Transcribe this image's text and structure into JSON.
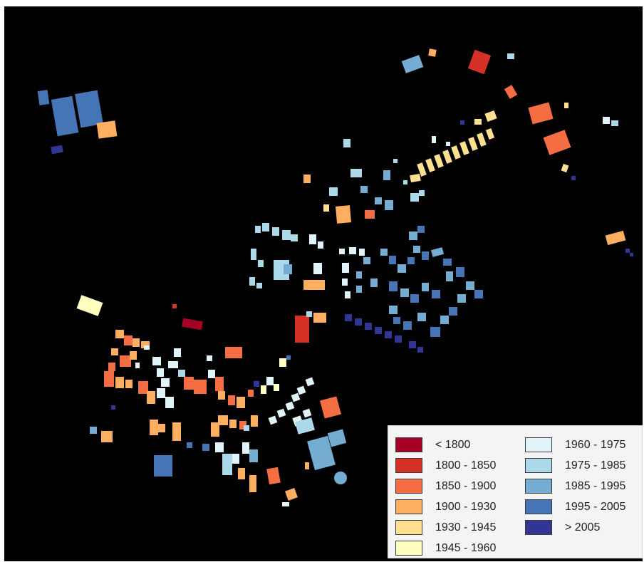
{
  "legend": {
    "items": [
      {
        "label": "< 1800",
        "color": "#a50026"
      },
      {
        "label": "1800 - 1850",
        "color": "#d73027"
      },
      {
        "label": "1850 - 1900",
        "color": "#f46d43"
      },
      {
        "label": "1900 - 1930",
        "color": "#fdae61"
      },
      {
        "label": "1930 - 1945",
        "color": "#fee090"
      },
      {
        "label": "1945 - 1960",
        "color": "#ffffbf"
      },
      {
        "label": "1960 - 1975",
        "color": "#e0f3f8"
      },
      {
        "label": "1975 - 1985",
        "color": "#abd9e9"
      },
      {
        "label": "1985 - 1995",
        "color": "#74add1"
      },
      {
        "label": "1995 - 2005",
        "color": "#4575b4"
      },
      {
        "label": "> 2005",
        "color": "#313695"
      }
    ]
  }
}
